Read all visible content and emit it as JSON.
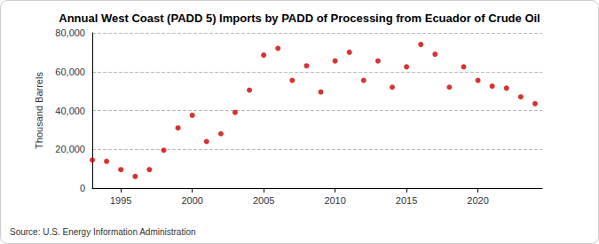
{
  "chart_data": {
    "type": "scatter",
    "title": "Annual West Coast (PADD 5) Imports by PADD of Processing from Ecuador of Crude Oil",
    "y_label": "Thousand Barrels",
    "annotations": [
      "Source: U.S. Energy Information Administration"
    ],
    "x": [
      1993,
      1994,
      1995,
      1996,
      1997,
      1998,
      1999,
      2000,
      2001,
      2002,
      2003,
      2004,
      2005,
      2006,
      2007,
      2008,
      2009,
      2010,
      2011,
      2012,
      2013,
      2014,
      2015,
      2016,
      2017,
      2018,
      2019,
      2020,
      2021,
      2022,
      2023,
      2024
    ],
    "values": [
      14500,
      13800,
      9500,
      6000,
      9500,
      19500,
      31000,
      37500,
      24000,
      28000,
      39000,
      50500,
      68500,
      72000,
      55500,
      63000,
      49500,
      65500,
      70000,
      55500,
      65500,
      52000,
      62500,
      74000,
      69000,
      52000,
      62500,
      55500,
      52500,
      51500,
      47000,
      43500
    ],
    "color": "#cc0000",
    "marker": "circle",
    "xlim": [
      1993,
      2024.5
    ],
    "xticks": [
      1995,
      2000,
      2005,
      2010,
      2015,
      2020
    ],
    "ylim": [
      0,
      80000
    ],
    "yticks": [
      0,
      {
        "value": 20000,
        "label": "20,000"
      },
      {
        "value": 40000,
        "label": "40,000"
      },
      {
        "value": 60000,
        "label": "60,000"
      },
      {
        "value": 80000,
        "label": "80,000"
      }
    ],
    "grid": true
  }
}
